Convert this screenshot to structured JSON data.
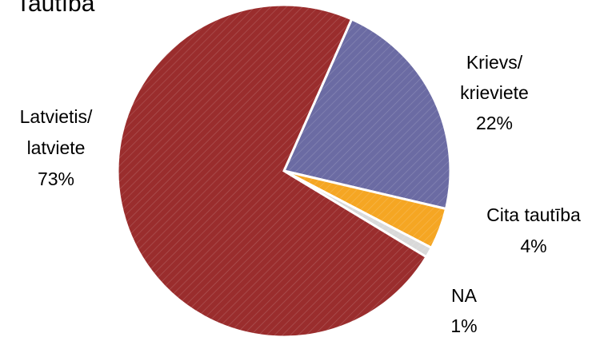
{
  "chart_data": {
    "type": "pie",
    "title": "Tautība",
    "slices": [
      {
        "label_line1": "Krievs/",
        "label_line2": "krieviete",
        "percent_label": "22%",
        "value": 22,
        "color": "#6b6ba3"
      },
      {
        "label_line1": "Cita tautība",
        "label_line2": "",
        "percent_label": "4%",
        "value": 4,
        "color": "#f5a623"
      },
      {
        "label_line1": "NA",
        "label_line2": "",
        "percent_label": "1%",
        "value": 1,
        "color": "#d9d9d9"
      },
      {
        "label_line1": "Latvietis/",
        "label_line2": "latviete",
        "percent_label": "73%",
        "value": 73,
        "color": "#9a2d2d"
      }
    ],
    "legend": "none",
    "grid": false
  }
}
